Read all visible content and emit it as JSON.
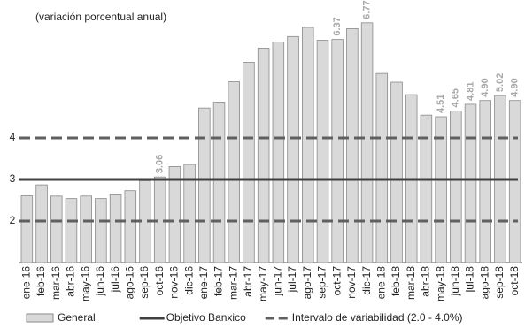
{
  "chart_data": {
    "type": "bar",
    "title": "(variación porcentual anual)",
    "categories": [
      "ene-16",
      "feb-16",
      "mar-16",
      "abr-16",
      "may-16",
      "jun-16",
      "jul-16",
      "ago-16",
      "sep-16",
      "oct-16",
      "nov-16",
      "dic-16",
      "ene-17",
      "feb-17",
      "mar-17",
      "abr-17",
      "may-17",
      "jun-17",
      "jul-17",
      "ago-17",
      "sep-17",
      "oct-17",
      "nov-17",
      "dic-17",
      "ene-18",
      "feb-18",
      "mar-18",
      "abr-18",
      "may-18",
      "jun-18",
      "jul-18",
      "ago-18",
      "sep-18",
      "oct-18"
    ],
    "series": [
      {
        "name": "General",
        "color": "#d9d9d9",
        "values": [
          2.61,
          2.87,
          2.6,
          2.54,
          2.6,
          2.54,
          2.65,
          2.73,
          2.97,
          3.06,
          3.31,
          3.36,
          4.72,
          4.86,
          5.35,
          5.82,
          6.16,
          6.31,
          6.44,
          6.66,
          6.35,
          6.37,
          6.63,
          6.77,
          5.55,
          5.34,
          5.04,
          4.55,
          4.51,
          4.65,
          4.81,
          4.9,
          5.02,
          4.9
        ],
        "value_labels": [
          null,
          null,
          null,
          null,
          null,
          null,
          null,
          null,
          null,
          "3.06",
          null,
          null,
          null,
          null,
          null,
          null,
          null,
          null,
          null,
          null,
          null,
          "6.37",
          null,
          "6.77",
          null,
          null,
          null,
          null,
          "4.51",
          "4.65",
          "4.81",
          "4.90",
          "5.02",
          "4.90"
        ]
      }
    ],
    "reference_lines": [
      {
        "name": "Objetivo Banxico",
        "color": "#404040",
        "style": "solid",
        "values": [
          3
        ]
      },
      {
        "name": "Intervalo de variabilidad (2.0 - 4.0%)",
        "color": "#606060",
        "style": "dashed",
        "values": [
          2,
          4
        ]
      }
    ],
    "ylim": [
      1,
      7
    ],
    "yticks": [
      2,
      3,
      4
    ]
  }
}
